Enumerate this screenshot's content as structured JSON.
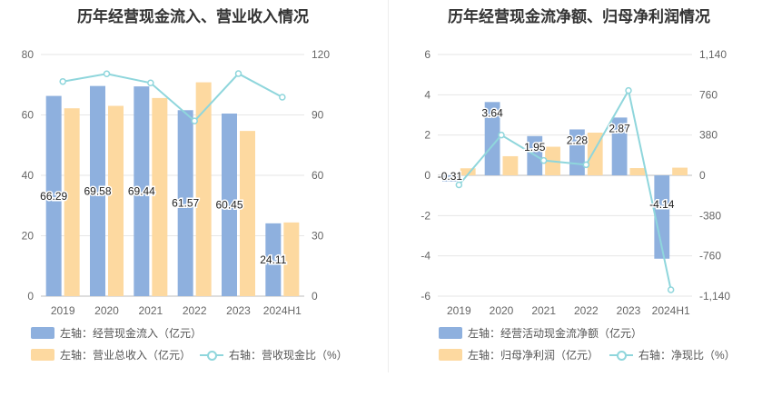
{
  "chart_data": [
    {
      "type": "bar",
      "title": "历年经营现金流入、营业收入情况",
      "categories": [
        "2019",
        "2020",
        "2021",
        "2022",
        "2023",
        "2024H1"
      ],
      "series": [
        {
          "name": "左轴：经营现金流入（亿元）",
          "axis": "left",
          "type": "bar",
          "color": "#8eb0de",
          "values": [
            66.29,
            69.58,
            69.44,
            61.57,
            60.45,
            24.11
          ]
        },
        {
          "name": "左轴：营业总收入（亿元）",
          "axis": "left",
          "type": "bar",
          "color": "#fdd9a0",
          "values": [
            62.2,
            63.0,
            65.6,
            70.8,
            54.7,
            24.4
          ]
        },
        {
          "name": "右轴：营收现金比（%）",
          "axis": "right",
          "type": "line",
          "color": "#8fd6dc",
          "values": [
            106.6,
            110.4,
            105.9,
            87.0,
            110.5,
            98.8
          ]
        }
      ],
      "data_labels": [
        "66.29",
        "69.58",
        "69.44",
        "61.57",
        "60.45",
        "24.11"
      ],
      "y_left": {
        "min": 0,
        "max": 80,
        "ticks": [
          "0",
          "20",
          "40",
          "60",
          "80"
        ]
      },
      "y_right": {
        "min": 0,
        "max": 120,
        "ticks": [
          "0",
          "30",
          "60",
          "90",
          "120"
        ]
      },
      "legend": [
        "左轴：经营现金流入（亿元）",
        "左轴：营业总收入（亿元）",
        "右轴：营收现金比（%）"
      ]
    },
    {
      "type": "bar",
      "title": "历年经营现金流净额、归母净利润情况",
      "categories": [
        "2019",
        "2020",
        "2021",
        "2022",
        "2023",
        "2024H1"
      ],
      "series": [
        {
          "name": "左轴：经营活动现金流净额（亿元）",
          "axis": "left",
          "type": "bar",
          "color": "#8eb0de",
          "values": [
            -0.31,
            3.64,
            1.95,
            2.28,
            2.87,
            -4.14
          ]
        },
        {
          "name": "左轴：归母净利润（亿元）",
          "axis": "left",
          "type": "bar",
          "color": "#fdd9a0",
          "values": [
            0.35,
            0.95,
            1.42,
            2.12,
            0.36,
            0.38
          ]
        },
        {
          "name": "右轴：净现比（%）",
          "axis": "right",
          "type": "line",
          "color": "#8fd6dc",
          "values": [
            -90,
            380,
            140,
            100,
            800,
            -1080
          ]
        }
      ],
      "data_labels": [
        "-0.31",
        "3.64",
        "1.95",
        "2.28",
        "2.87",
        "-4.14"
      ],
      "y_left": {
        "min": -6,
        "max": 6,
        "ticks": [
          "-6",
          "-4",
          "-2",
          "0",
          "2",
          "4",
          "6"
        ]
      },
      "y_right": {
        "min": -1140,
        "max": 1140,
        "ticks": [
          "-1,140",
          "-760",
          "-380",
          "0",
          "380",
          "760",
          "1,140"
        ]
      },
      "legend": [
        "左轴：经营活动现金流净额（亿元）",
        "左轴：归母净利润（亿元）",
        "右轴：净现比（%）"
      ]
    }
  ]
}
